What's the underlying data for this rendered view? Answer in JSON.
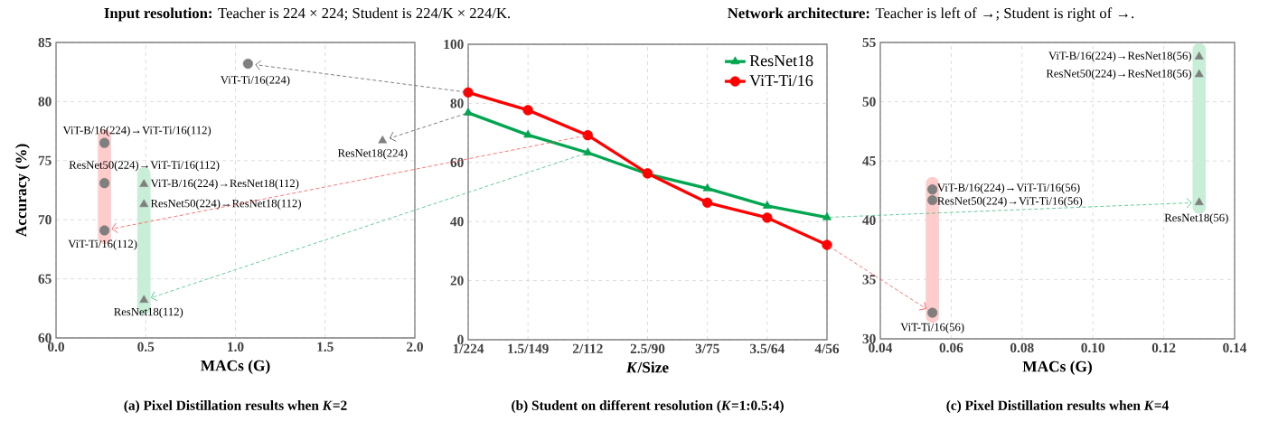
{
  "chart_data": [
    {
      "type": "scatter",
      "title": "**Input resolution:** Teacher is 224 × 224;  Student is 224/K × 224/K.",
      "xlabel": "MACs (G)",
      "ylabel": "Accuracy (%)",
      "xlim": [
        0,
        2
      ],
      "xticks": [
        {
          "value": 0,
          "label": "0.0"
        },
        {
          "value": 0.5,
          "label": "0.5"
        },
        {
          "value": 1,
          "label": "1.0"
        },
        {
          "value": 1.5,
          "label": "1.5"
        },
        {
          "value": 2,
          "label": "2.0"
        }
      ],
      "ylim": [
        60,
        85
      ],
      "yticks": [
        60,
        65,
        70,
        75,
        80,
        85
      ],
      "grid": true,
      "legend": false,
      "series": [
        {
          "type": "line",
          "marker": "none",
          "color": "#ffcccc",
          "x": [
            0.27,
            0.27
          ],
          "values": [
            68.5,
            77.1
          ]
        },
        {
          "type": "line",
          "marker": "none",
          "color": "#c8eed8",
          "x": [
            0.49,
            0.49
          ],
          "values": [
            62.5,
            73.9
          ]
        },
        {
          "type": "scatter",
          "marker": "circle",
          "color": "#7f7f7f",
          "x": [
            1.07,
            0.27,
            0.27,
            0.27
          ],
          "values": [
            83.2,
            76.5,
            73.1,
            69.1
          ]
        },
        {
          "type": "scatter",
          "marker": "triangle",
          "color": "#7f7f7f",
          "x": [
            1.82,
            0.49,
            0.49,
            0.49
          ],
          "values": [
            76.7,
            73.0,
            71.3,
            63.2
          ]
        }
      ],
      "annotations": [
        {
          "text": "ViT-Ti/16(224)",
          "x": 1.07,
          "y": 83.2
        },
        {
          "text": "ViT-B/16(224)→ViT-Ti/16(112)",
          "x": 0.27,
          "y": 76.5
        },
        {
          "text": "ResNet50(224)→ViT-Ti/16(112)",
          "x": 0.27,
          "y": 73.1
        },
        {
          "text": "ViT-Ti/16(112)",
          "x": 0.27,
          "y": 69.1
        },
        {
          "text": "ResNet18(224)",
          "x": 1.82,
          "y": 76.7
        },
        {
          "text": "ViT-B/16(224)→ResNet18(112)",
          "x": 0.49,
          "y": 73.0
        },
        {
          "text": "ResNet50(224)→ResNet18(112)",
          "x": 0.49,
          "y": 71.3
        },
        {
          "text": "ResNet18(112)",
          "x": 0.49,
          "y": 63.2
        },
        "(a) Pixel Distillation results when *K*=2"
      ]
    },
    {
      "type": "line",
      "xlabel": "*K*/Size",
      "categories": [
        "1/224",
        "1.5/149",
        "2/112",
        "2.5/90",
        "3/75",
        "3.5/64",
        "4/56"
      ],
      "ylim": [
        0,
        100
      ],
      "yticks": [
        0,
        20,
        40,
        60,
        80,
        100
      ],
      "grid": true,
      "legend": "top right",
      "series": [
        {
          "name": "ResNet18",
          "marker": "triangle",
          "color": "#00a64f",
          "values": [
            76.8,
            69.3,
            63.3,
            56.1,
            51.2,
            45.3,
            41.4
          ]
        },
        {
          "name": "ViT-Ti/16",
          "marker": "circle",
          "color": "#ff0000",
          "values": [
            83.7,
            77.7,
            69.2,
            56.3,
            46.4,
            41.3,
            32.1
          ]
        }
      ],
      "annotations": [
        "(b) Student on different resolution (*K*=1:0.5:4)"
      ]
    },
    {
      "type": "scatter",
      "title": "**Network architecture:** Teacher is left of →; Student is right of →.",
      "xlabel": "MACs (G)",
      "xlim": [
        0.04,
        0.14
      ],
      "xticks": [
        {
          "value": 0.04,
          "label": "0.04"
        },
        {
          "value": 0.06,
          "label": "0.06"
        },
        {
          "value": 0.08,
          "label": "0.08"
        },
        {
          "value": 0.1,
          "label": "0.10"
        },
        {
          "value": 0.12,
          "label": "0.12"
        },
        {
          "value": 0.14,
          "label": "0.14"
        }
      ],
      "ylim": [
        30,
        55
      ],
      "yticks": [
        30,
        35,
        40,
        45,
        50,
        55
      ],
      "grid": true,
      "legend": false,
      "series": [
        {
          "type": "line",
          "marker": "none",
          "color": "#ffcccc",
          "x": [
            0.0547,
            0.0547
          ],
          "values": [
            31.9,
            43.1
          ]
        },
        {
          "type": "line",
          "marker": "none",
          "color": "#c8eed8",
          "x": [
            0.13,
            0.13
          ],
          "values": [
            41.1,
            54.4
          ]
        },
        {
          "type": "scatter",
          "marker": "circle",
          "color": "#7f7f7f",
          "x": [
            0.0547,
            0.0547,
            0.0547
          ],
          "values": [
            42.6,
            41.7,
            32.2
          ]
        },
        {
          "type": "scatter",
          "marker": "triangle",
          "color": "#7f7f7f",
          "x": [
            0.13,
            0.13,
            0.13
          ],
          "values": [
            53.8,
            52.3,
            41.5
          ]
        }
      ],
      "annotations": [
        {
          "text": "ViT-B/16(224)→ViT-Ti/16(56)",
          "x": 0.0547,
          "y": 42.6
        },
        {
          "text": "ResNet50(224)→ViT-Ti/16(56)",
          "x": 0.0547,
          "y": 41.7
        },
        {
          "text": "ViT-Ti/16(56)",
          "x": 0.0547,
          "y": 32.2
        },
        {
          "text": "ViT-B/16(224)→ResNet18(56)",
          "x": 0.13,
          "y": 53.8
        },
        {
          "text": "ResNet50(224)→ResNet18(56)",
          "x": 0.13,
          "y": 52.3
        },
        {
          "text": "ResNet18(56)",
          "x": 0.13,
          "y": 41.5
        },
        "(c) Pixel Distillation results when *K*=4"
      ]
    }
  ]
}
